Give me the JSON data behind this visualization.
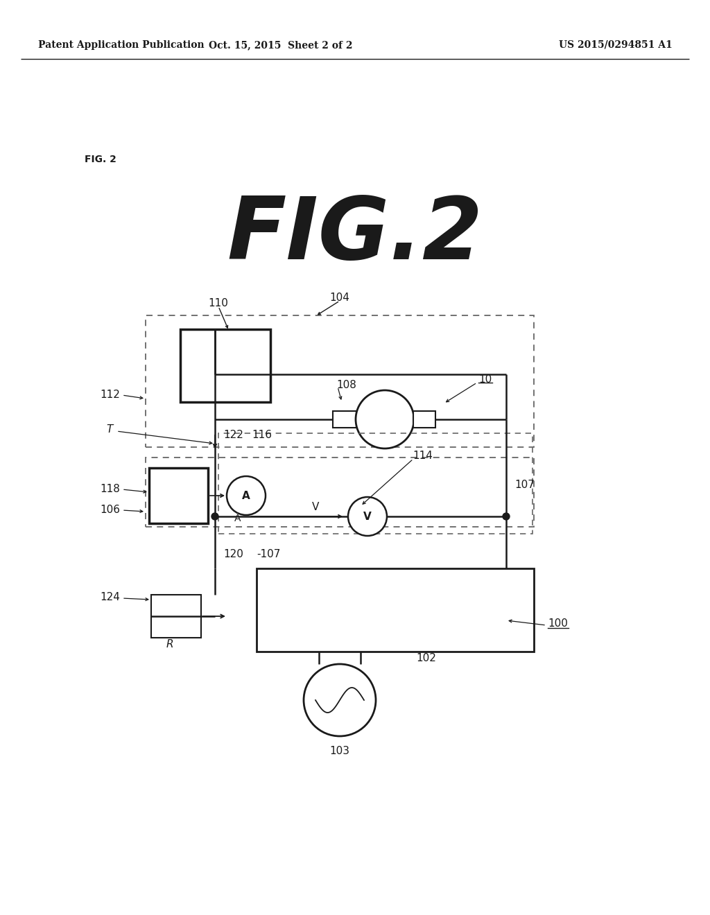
{
  "header_left": "Patent Application Publication",
  "header_center": "Oct. 15, 2015  Sheet 2 of 2",
  "header_right": "US 2015/0294851 A1",
  "bg": "#ffffff",
  "lc": "#1a1a1a",
  "dc": "#666666"
}
